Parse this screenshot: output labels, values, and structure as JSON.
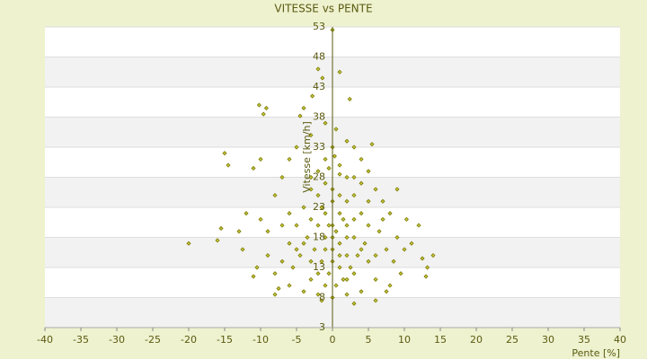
{
  "chart_data": {
    "type": "scatter",
    "title": "VITESSE vs PENTE",
    "xlabel": "Pente [%]",
    "ylabel": "Vitesse [km/h]",
    "color": "#7a7a00",
    "fill": "#c8c840",
    "xlim": [
      -40,
      40
    ],
    "xticks": [
      -40,
      -35,
      -30,
      -25,
      -20,
      -15,
      -10,
      -5,
      0,
      5,
      10,
      15,
      20,
      25,
      30,
      35,
      40
    ],
    "ylim": [
      3,
      53
    ],
    "yticks": [
      3,
      8,
      13,
      18,
      23,
      28,
      33,
      38,
      43,
      48,
      53
    ],
    "x": [
      -20,
      -16,
      -15,
      -14.5,
      -10.2,
      -9.6,
      -9.2,
      -11,
      -10,
      1,
      2.4,
      0,
      -2,
      -1.4,
      -2.8,
      -4.5,
      -4,
      5.5,
      14,
      13.2,
      13,
      12,
      11,
      -11,
      -7.5,
      7.5,
      9,
      10.3,
      -12,
      -13,
      -15.5,
      -12.5,
      -9,
      -8,
      -7,
      -6,
      -5,
      -3,
      -1,
      0.5,
      2,
      3,
      4,
      5,
      6,
      7,
      8,
      6.5,
      7.5,
      8.5,
      9.5,
      6,
      4,
      2,
      0,
      -2,
      -4,
      -6,
      -8,
      -7,
      -6,
      -5,
      -4,
      -3,
      -2,
      -1,
      0,
      1,
      2,
      3,
      4,
      5,
      4.5,
      3.5,
      2.5,
      1.5,
      0.5,
      -0.5,
      -1.5,
      -2.5,
      -3.5,
      -4.5,
      -5.5,
      -3,
      -1,
      1,
      2,
      3,
      2,
      1,
      0,
      -1,
      -2,
      -1,
      0,
      1,
      2,
      0.5,
      -0.5,
      1.5,
      -1.5,
      0,
      1,
      2,
      -2,
      -3,
      3,
      -4,
      4,
      -3,
      3,
      -2,
      2,
      0,
      0,
      0,
      1,
      -1,
      5,
      -5,
      6,
      -6,
      5,
      -1,
      3,
      1,
      -0.5,
      0.3,
      8,
      10,
      -9,
      -10,
      9,
      -8,
      6,
      -1.5,
      3,
      -3,
      4,
      -7,
      7,
      12.5,
      -10.5
    ],
    "y": [
      17,
      17.5,
      32,
      30,
      40,
      38.5,
      39.5,
      29.5,
      31,
      45.5,
      41,
      52.5,
      46,
      44.5,
      41.5,
      38.2,
      39.5,
      33.5,
      15,
      13,
      11.5,
      20,
      17,
      11.5,
      9.5,
      9,
      18,
      21,
      22,
      19,
      19.5,
      16,
      15,
      25,
      28,
      31,
      33,
      35,
      37,
      36,
      34,
      33,
      31,
      29,
      26,
      24,
      22,
      19,
      16,
      14,
      12,
      11,
      9,
      8.5,
      8,
      8.5,
      9,
      10,
      12,
      14,
      17,
      20,
      23,
      26,
      29,
      31,
      33,
      30,
      28,
      25,
      22,
      20,
      17,
      15,
      13,
      11,
      10,
      12,
      14,
      16,
      18,
      15,
      13,
      11,
      10,
      13,
      15,
      18,
      20,
      22,
      24,
      22,
      20,
      18,
      16,
      17,
      18,
      19,
      20,
      21,
      23,
      26,
      25,
      24,
      25,
      21,
      21,
      17,
      16,
      14,
      12,
      12,
      11,
      14,
      20,
      18,
      15,
      16,
      14,
      16,
      15,
      22,
      24,
      27,
      28,
      28.5,
      29.5,
      31.5,
      10,
      16,
      19,
      21,
      26,
      8.5,
      7.5,
      7.5,
      7,
      28,
      27,
      20,
      21,
      14.5,
      13
    ]
  }
}
